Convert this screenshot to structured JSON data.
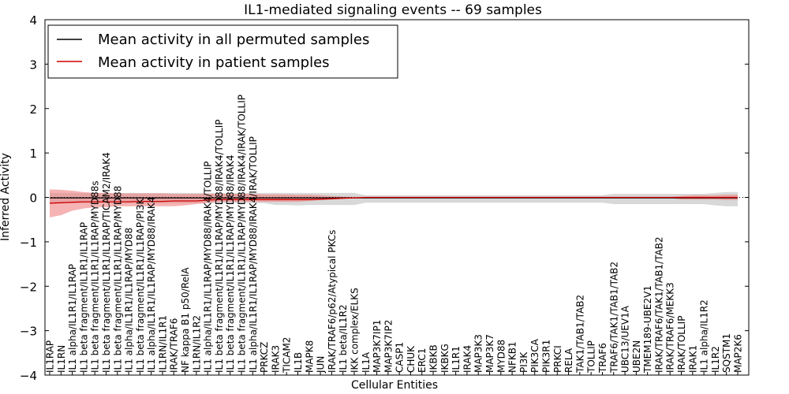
{
  "chart_data": {
    "type": "line",
    "title": "IL1-mediated signaling events -- 69 samples",
    "xlabel": "Cellular Entities",
    "ylabel": "Inferred Activity",
    "ylim": [
      -4,
      4
    ],
    "yticks": [
      -4,
      -3,
      -2,
      -1,
      0,
      1,
      2,
      3,
      4
    ],
    "grid": false,
    "legend_position": "top-left",
    "categories": [
      "IL1RAP",
      "IL1RN",
      "IL1 alpha/IL1R1/IL1RAP",
      "IL1 beta fragment/IL1R1/IL1RAP",
      "IL1 beta fragment/IL1R1/IL1RAP/MYD88s",
      "IL1 beta fragment/IL1R1/IL1RAP/TICAM2/IRAK4",
      "IL1 beta fragment/IL1R1/IL1RAP/MYD88",
      "IL1 alpha/IL1R1/IL1RAP/MYD88",
      "IL1 beta fragment/IL1R1/IL1RAP/PI3K",
      "IL1 alpha/IL1R1/IL1RAP/MYD88/IRAK4",
      "IL1RN/IL1R1",
      "IRAK/TRAF6",
      "NF kappa B1 p50/RelA",
      "IL1RN/IL1R2",
      "IL1 alpha/IL1R1/IL1RAP/MYD88/IRAK4/TOLLIP",
      "IL1 beta fragment/IL1R1/IL1RAP/MYD88/IRAK4/TOLLIP",
      "IL1 beta fragment/IL1R1/IL1RAP/MYD88/IRAK4",
      "IL1 beta fragment/IL1R1/IL1RAP/MYD88/IRAK4/IRAK/TOLLIP",
      "IL1 alpha/IL1R1/IL1RAP/MYD88/IRAK4/IRAK/TOLLIP",
      "PRKCZ",
      "IRAK3",
      "TICAM2",
      "IL1B",
      "MAPK8",
      "JUN",
      "IRAK/TRAF6/p62/Atypical PKCs",
      "IL1 beta/IL1R2",
      "IKK complex/ELKS",
      "IL1A",
      "MAP3K7IP1",
      "MAP3K7IP2",
      "CASP1",
      "CHUK",
      "ERC1",
      "IKBKB",
      "IKBKG",
      "IL1R1",
      "IRAK4",
      "MAP3K3",
      "MAP3K7",
      "MYD88",
      "NFKB1",
      "PI3K",
      "PIK3CA",
      "PIK3R1",
      "PRKCI",
      "RELA",
      "TAK1/TAB1/TAB2",
      "TOLLIP",
      "TRAF6",
      "TRAF6/TAK1/TAB1/TAB2",
      "UBC13/UEV1A",
      "UBE2N",
      "TMEM189-UBE2V1",
      "IRAK/TRAF6/TAK1/TAB1/TAB2",
      "IRAK/TRAF6/MEKK3",
      "IRAK/TOLLIP",
      "IRAK1",
      "IL1 alpha/IL1R2",
      "IL1R2",
      "SQSTM1",
      "MAP2K6"
    ],
    "series": [
      {
        "name": "Mean activity in all permuted samples",
        "color": "#000000",
        "band_color": "#c8c8c8",
        "values": [
          -0.01,
          -0.01,
          -0.01,
          -0.01,
          -0.01,
          -0.01,
          -0.01,
          -0.01,
          -0.01,
          -0.01,
          -0.01,
          -0.01,
          -0.01,
          -0.01,
          -0.01,
          -0.01,
          -0.01,
          -0.01,
          -0.01,
          -0.01,
          -0.01,
          -0.01,
          -0.01,
          -0.01,
          -0.01,
          -0.01,
          -0.01,
          -0.01,
          -0.01,
          -0.01,
          -0.01,
          -0.01,
          -0.01,
          -0.01,
          -0.01,
          -0.01,
          -0.01,
          -0.01,
          -0.01,
          -0.01,
          -0.01,
          -0.01,
          -0.01,
          -0.01,
          -0.01,
          -0.01,
          -0.01,
          -0.01,
          -0.01,
          -0.01,
          -0.01,
          -0.01,
          -0.01,
          -0.01,
          -0.01,
          -0.01,
          -0.01,
          -0.01,
          -0.01,
          -0.01,
          -0.01,
          -0.01
        ],
        "lower": [
          -0.12,
          -0.12,
          -0.13,
          -0.13,
          -0.13,
          -0.13,
          -0.13,
          -0.13,
          -0.13,
          -0.13,
          -0.13,
          -0.13,
          -0.13,
          -0.13,
          -0.13,
          -0.13,
          -0.13,
          -0.13,
          -0.13,
          -0.13,
          -0.17,
          -0.17,
          -0.18,
          -0.17,
          -0.17,
          -0.17,
          -0.17,
          -0.17,
          -0.12,
          -0.12,
          -0.12,
          -0.12,
          -0.12,
          -0.12,
          -0.12,
          -0.12,
          -0.12,
          -0.12,
          -0.12,
          -0.12,
          -0.12,
          -0.12,
          -0.12,
          -0.12,
          -0.12,
          -0.12,
          -0.12,
          -0.12,
          -0.12,
          -0.12,
          -0.15,
          -0.15,
          -0.15,
          -0.15,
          -0.15,
          -0.15,
          -0.15,
          -0.15,
          -0.15,
          -0.18,
          -0.2,
          -0.2
        ],
        "upper": [
          0.1,
          0.1,
          0.1,
          0.1,
          0.1,
          0.1,
          0.1,
          0.1,
          0.1,
          0.1,
          0.1,
          0.1,
          0.1,
          0.1,
          0.1,
          0.1,
          0.1,
          0.1,
          0.1,
          0.1,
          0.1,
          0.1,
          0.1,
          0.1,
          0.1,
          0.1,
          0.1,
          0.1,
          0.05,
          0.05,
          0.05,
          0.05,
          0.05,
          0.05,
          0.05,
          0.05,
          0.05,
          0.05,
          0.05,
          0.05,
          0.05,
          0.05,
          0.05,
          0.05,
          0.05,
          0.05,
          0.05,
          0.05,
          0.05,
          0.05,
          0.08,
          0.08,
          0.08,
          0.08,
          0.08,
          0.08,
          0.08,
          0.08,
          0.08,
          0.1,
          0.12,
          0.12
        ]
      },
      {
        "name": "Mean activity in patient samples",
        "color": "#d00000",
        "band_color": "#f08080",
        "values": [
          -0.13,
          -0.12,
          -0.11,
          -0.1,
          -0.1,
          -0.1,
          -0.1,
          -0.1,
          -0.09,
          -0.09,
          -0.09,
          -0.08,
          -0.08,
          -0.08,
          -0.06,
          -0.05,
          -0.05,
          -0.05,
          -0.05,
          -0.05,
          -0.05,
          -0.05,
          -0.05,
          -0.05,
          -0.04,
          -0.03,
          -0.02,
          -0.01,
          0.0,
          0.0,
          0.0,
          0.0,
          0.0,
          0.0,
          0.0,
          0.0,
          0.0,
          0.0,
          0.0,
          0.0,
          0.0,
          0.0,
          0.0,
          0.0,
          0.0,
          0.0,
          0.0,
          0.0,
          0.0,
          0.0,
          0.0,
          0.0,
          0.0,
          0.0,
          0.0,
          0.0,
          0.0,
          0.0,
          0.0,
          0.0,
          0.0,
          0.0
        ],
        "lower": [
          -0.45,
          -0.4,
          -0.3,
          -0.25,
          -0.22,
          -0.22,
          -0.2,
          -0.2,
          -0.2,
          -0.2,
          -0.2,
          -0.2,
          -0.18,
          -0.15,
          -0.12,
          -0.1,
          -0.1,
          -0.1,
          -0.1,
          -0.1,
          -0.1,
          -0.1,
          -0.1,
          -0.08,
          -0.06,
          -0.05,
          -0.03,
          -0.02,
          -0.01,
          -0.01,
          -0.01,
          -0.01,
          -0.01,
          -0.01,
          -0.01,
          -0.01,
          -0.01,
          -0.01,
          -0.01,
          -0.01,
          -0.01,
          -0.01,
          -0.01,
          -0.01,
          -0.01,
          -0.01,
          -0.01,
          -0.01,
          -0.01,
          -0.01,
          -0.01,
          -0.01,
          -0.01,
          -0.01,
          -0.01,
          -0.01,
          -0.05,
          -0.05,
          -0.05,
          -0.05,
          -0.06,
          -0.06
        ],
        "upper": [
          0.18,
          0.17,
          0.15,
          0.12,
          0.1,
          0.1,
          0.09,
          0.09,
          0.09,
          0.09,
          0.09,
          0.08,
          0.08,
          0.08,
          0.08,
          0.08,
          0.08,
          0.08,
          0.08,
          0.07,
          0.07,
          0.07,
          0.06,
          0.06,
          0.05,
          0.03,
          0.02,
          0.01,
          0.01,
          0.01,
          0.01,
          0.01,
          0.01,
          0.01,
          0.01,
          0.01,
          0.01,
          0.01,
          0.01,
          0.01,
          0.01,
          0.01,
          0.01,
          0.01,
          0.01,
          0.01,
          0.01,
          0.01,
          0.01,
          0.01,
          0.01,
          0.01,
          0.01,
          0.01,
          0.01,
          0.01,
          0.03,
          0.05,
          0.05,
          0.05,
          0.06,
          0.06
        ]
      }
    ]
  }
}
